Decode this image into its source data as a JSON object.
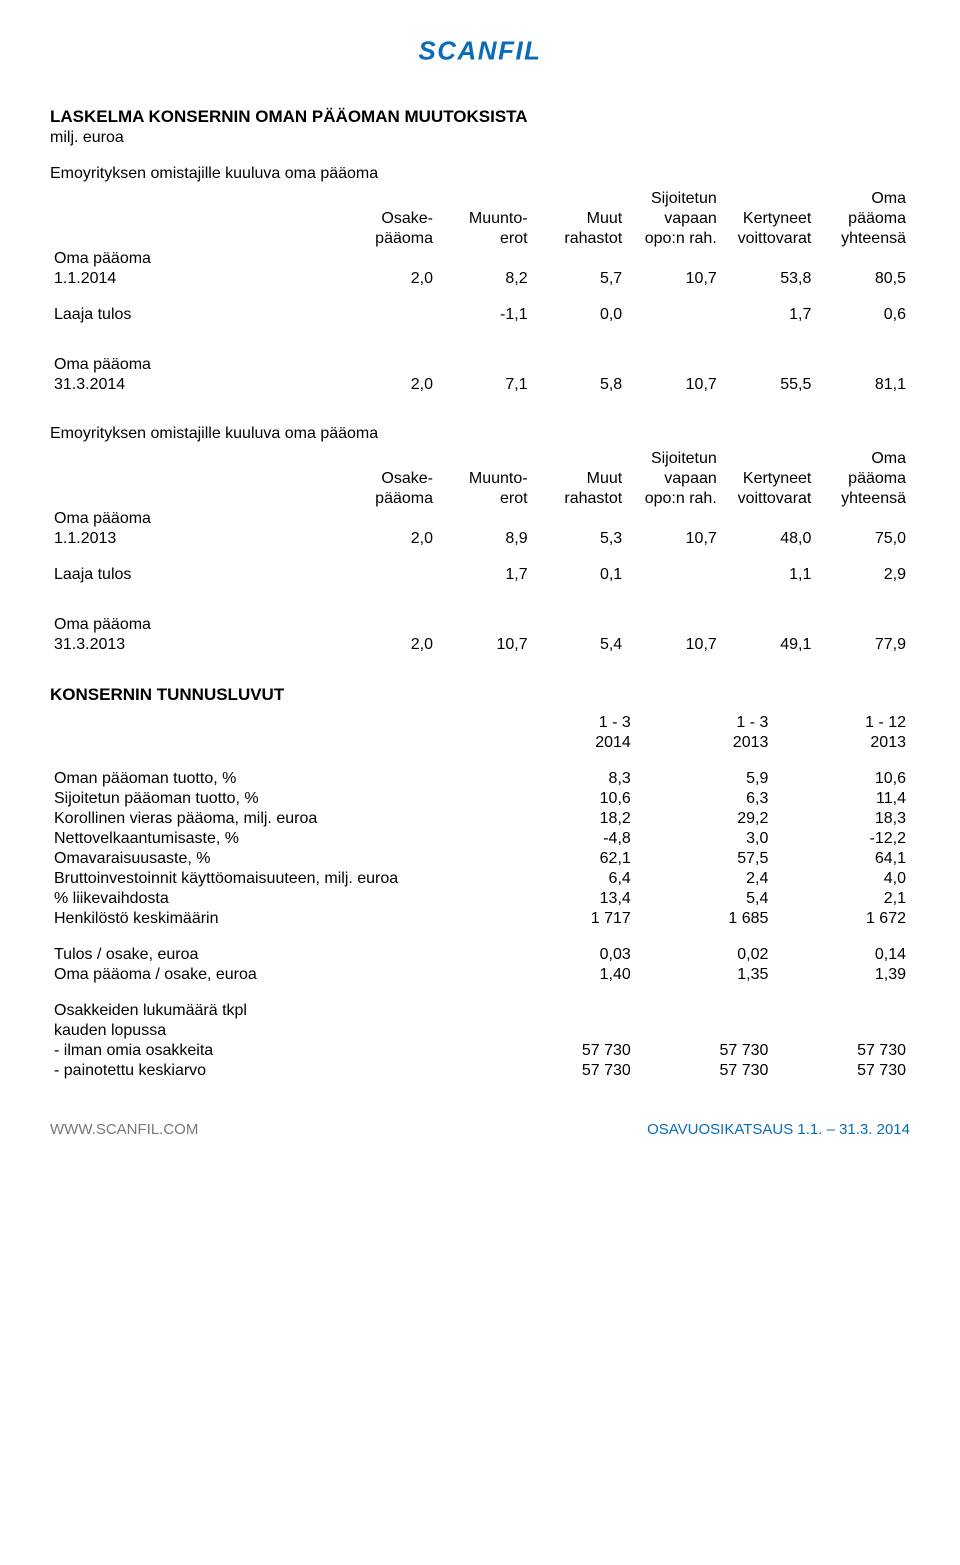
{
  "logo_color": "#0a6bb6",
  "title": "LASKELMA KONSERNIN OMAN PÄÄOMAN MUUTOKSISTA",
  "subtitle": "milj. euroa",
  "group_header": "Emoyrityksen omistajille kuuluva oma pääoma",
  "cols": {
    "c1a": "Osake-",
    "c1b": "pääoma",
    "c2a": "Muunto-",
    "c2b": "erot",
    "c3a": "Muut",
    "c3b": "rahastot",
    "c4a": "Sijoitetun",
    "c4b": "vapaan",
    "c4c": "opo:n rah.",
    "c5a": "Kertyneet",
    "c5b": "voittovarat",
    "c6a": "Oma",
    "c6b": "pääoma",
    "c6c": "yhteensä"
  },
  "rowlabel_oma": "Oma pääoma",
  "t1": {
    "r1_label": "1.1.2014",
    "r1": [
      "2,0",
      "8,2",
      "5,7",
      "10,7",
      "53,8",
      "80,5"
    ],
    "r2_label": "Laaja tulos",
    "r2_c2": "-1,1",
    "r2_c3": "0,0",
    "r2_c5": "1,7",
    "r2_c6": "0,6",
    "r3_label": "31.3.2014",
    "r3": [
      "2,0",
      "7,1",
      "5,8",
      "10,7",
      "55,5",
      "81,1"
    ]
  },
  "t2": {
    "r1_label": "1.1.2013",
    "r1": [
      "2,0",
      "8,9",
      "5,3",
      "10,7",
      "48,0",
      "75,0"
    ],
    "r2_label": "Laaja tulos",
    "r2_c2": "1,7",
    "r2_c3": "0,1",
    "r2_c5": "1,1",
    "r2_c6": "2,9",
    "r3_label": "31.3.2013",
    "r3": [
      "2,0",
      "10,7",
      "5,4",
      "10,7",
      "49,1",
      "77,9"
    ]
  },
  "key_title": "KONSERNIN TUNNUSLUVUT",
  "key_cols": {
    "c1a": "1 - 3",
    "c1b": "2014",
    "c2a": "1 - 3",
    "c2b": "2013",
    "c3a": "1 - 12",
    "c3b": "2013"
  },
  "key_rows": [
    {
      "label": "Oman pääoman tuotto, %",
      "v": [
        "8,3",
        "5,9",
        "10,6"
      ]
    },
    {
      "label": "Sijoitetun pääoman tuotto, %",
      "v": [
        "10,6",
        "6,3",
        "11,4"
      ]
    },
    {
      "label": "Korollinen vieras pääoma, milj. euroa",
      "v": [
        "18,2",
        "29,2",
        "18,3"
      ]
    },
    {
      "label": "Nettovelkaantumisaste, %",
      "v": [
        "-4,8",
        "3,0",
        "-12,2"
      ]
    },
    {
      "label": "Omavaraisuusaste, %",
      "v": [
        "62,1",
        "57,5",
        "64,1"
      ]
    },
    {
      "label": "Bruttoinvestoinnit käyttöomaisuuteen, milj. euroa",
      "v": [
        "6,4",
        "2,4",
        "4,0"
      ]
    },
    {
      "label": "% liikevaihdosta",
      "v": [
        "13,4",
        "5,4",
        "2,1"
      ]
    },
    {
      "label": "Henkilöstö keskimäärin",
      "v": [
        "1 717",
        "1 685",
        "1 672"
      ]
    }
  ],
  "key_rows2": [
    {
      "label": "Tulos / osake, euroa",
      "v": [
        "0,03",
        "0,02",
        "0,14"
      ]
    },
    {
      "label": "Oma pääoma / osake, euroa",
      "v": [
        "1,40",
        "1,35",
        "1,39"
      ]
    }
  ],
  "shares_header": "Osakkeiden lukumäärä tkpl",
  "shares_sub": "kauden lopussa",
  "shares_rows": [
    {
      "label": " - ilman omia osakkeita",
      "v": [
        "57 730",
        "57 730",
        "57 730"
      ]
    },
    {
      "label": " - painotettu keskiarvo",
      "v": [
        "57 730",
        "57 730",
        "57 730"
      ]
    }
  ],
  "footer_left": "WWW.SCANFIL.COM",
  "footer_right": "OSAVUOSIKATSAUS 1.1. – 31.3. 2014"
}
